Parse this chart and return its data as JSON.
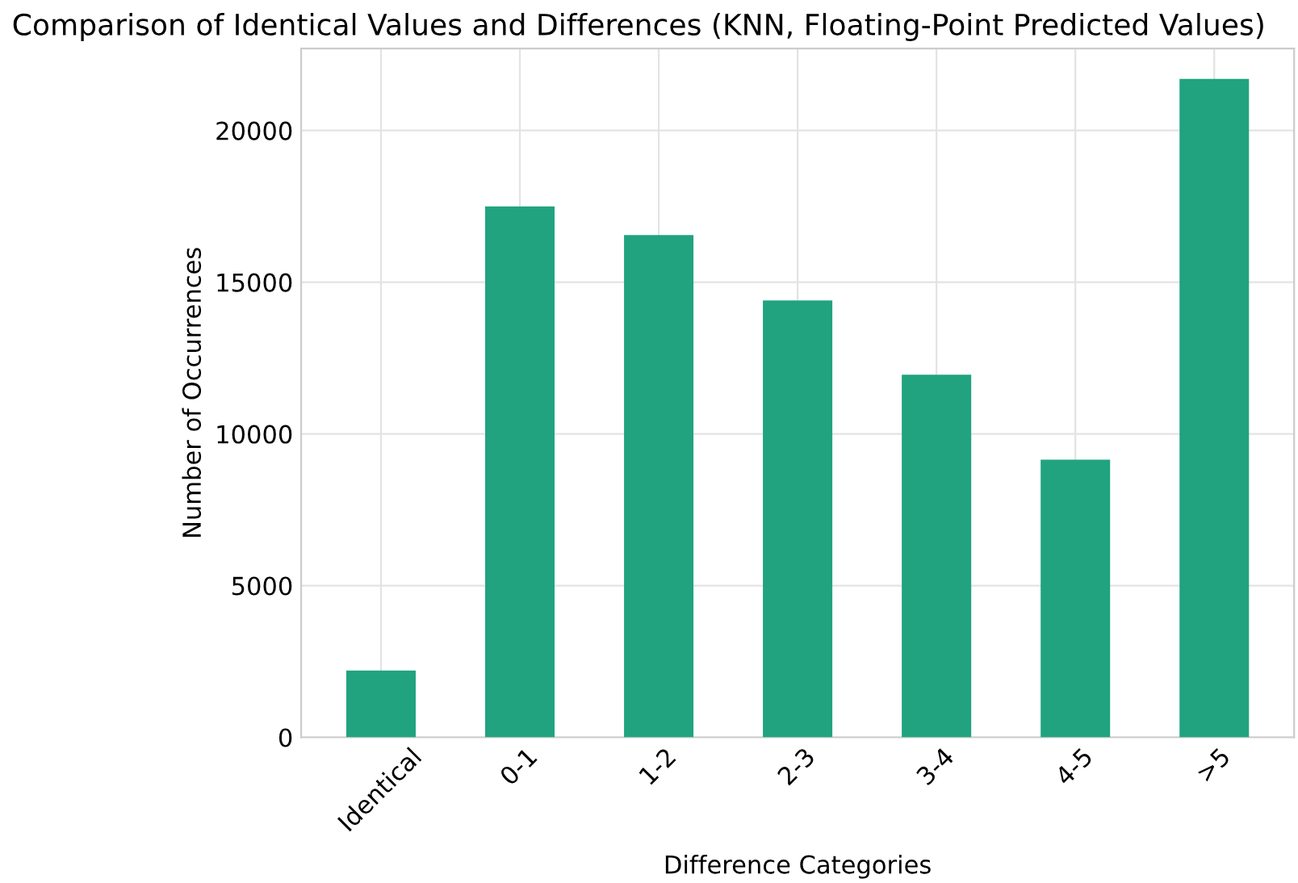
{
  "chart_data": {
    "type": "bar",
    "title": "Comparison of Identical Values and Differences (KNN, Floating-Point Predicted Values)",
    "xlabel": "Difference Categories",
    "ylabel": "Number of Occurrences",
    "categories": [
      "Identical",
      "0-1",
      "1-2",
      "2-3",
      "3-4",
      "4-5",
      ">5"
    ],
    "values": [
      2200,
      17500,
      16550,
      14400,
      11950,
      9150,
      21700
    ],
    "color": "#21a37f",
    "ylim": [
      0,
      22700
    ],
    "yticks": [
      0,
      5000,
      10000,
      15000,
      20000
    ],
    "grid": true
  }
}
